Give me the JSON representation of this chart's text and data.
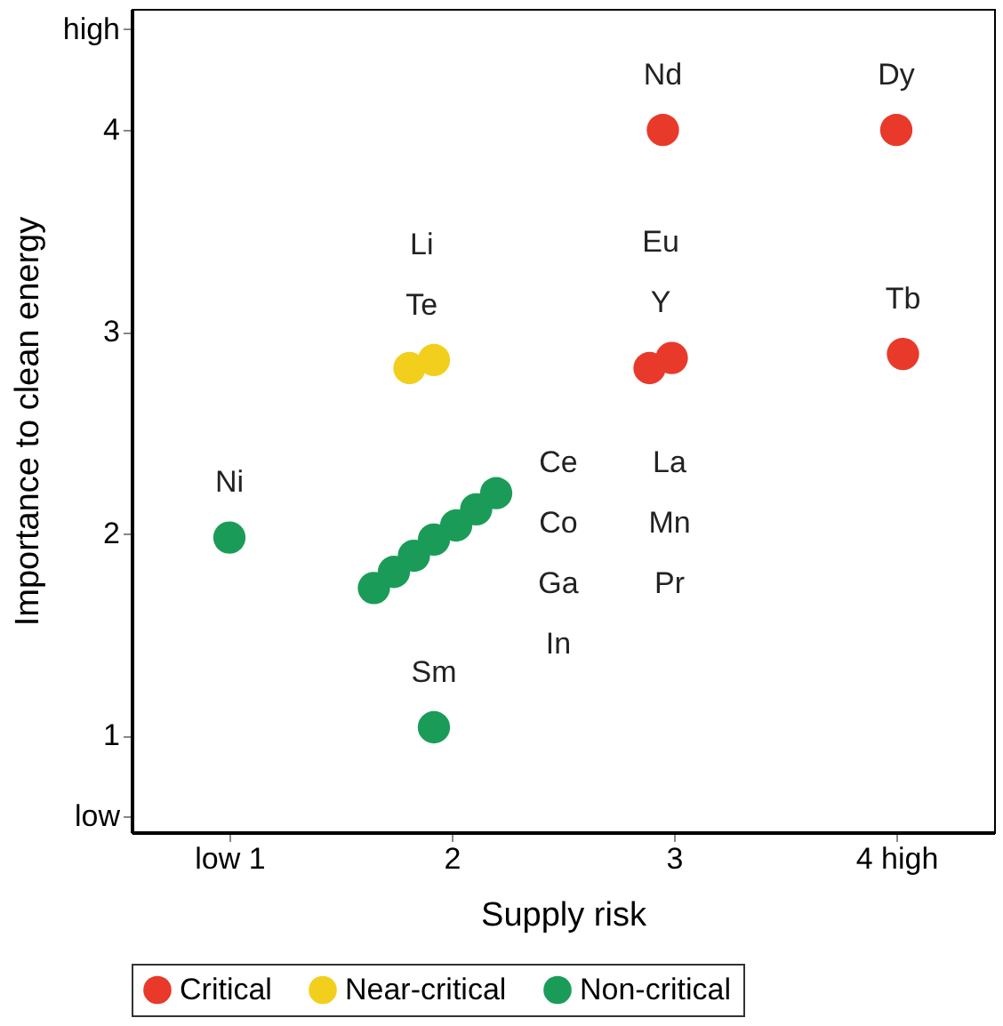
{
  "chart_data": {
    "type": "scatter",
    "xlabel": "Supply risk",
    "ylabel": "Importance to clean energy",
    "xlim": [
      0.56,
      4.44
    ],
    "ylim": [
      0.52,
      4.6
    ],
    "xticks": [
      {
        "value": 1,
        "label": "low 1"
      },
      2,
      3,
      {
        "value": 4,
        "label": "4 high"
      }
    ],
    "yticks": [
      {
        "value": 0.6,
        "label": "low"
      },
      1,
      2,
      3,
      4,
      {
        "value": 4.5,
        "label": "high"
      }
    ],
    "marker": "circle",
    "grid": false,
    "legend": "bottom",
    "series": [
      {
        "name": "Critical",
        "color": "#e8392b",
        "x": [
          2.95,
          4.0,
          2.89,
          2.99,
          4.03
        ],
        "values": [
          4.0,
          4.0,
          2.82,
          2.87,
          2.89
        ],
        "value_labels": [
          "Nd",
          "Dy",
          "Eu",
          "Y",
          "Tb"
        ]
      },
      {
        "name": "Near-critical",
        "color": "#f2cf1d",
        "x": [
          1.81,
          1.92
        ],
        "values": [
          2.82,
          2.86
        ],
        "value_labels": [
          "Li",
          "Te"
        ]
      },
      {
        "name": "Non-critical",
        "color": "#1a9c58",
        "x": [
          1.0,
          1.92,
          1.65,
          1.74,
          1.83,
          1.92,
          2.02,
          2.11,
          2.2
        ],
        "values": [
          1.98,
          1.04,
          1.73,
          1.81,
          1.89,
          1.97,
          2.04,
          2.12,
          2.2
        ],
        "value_labels": [
          "Ni",
          "Sm",
          null,
          null,
          null,
          null,
          null,
          null,
          null
        ]
      }
    ],
    "annotations": [
      "Ce",
      "Co",
      "Ga",
      "In",
      "La",
      "Mn",
      "Pr"
    ]
  }
}
